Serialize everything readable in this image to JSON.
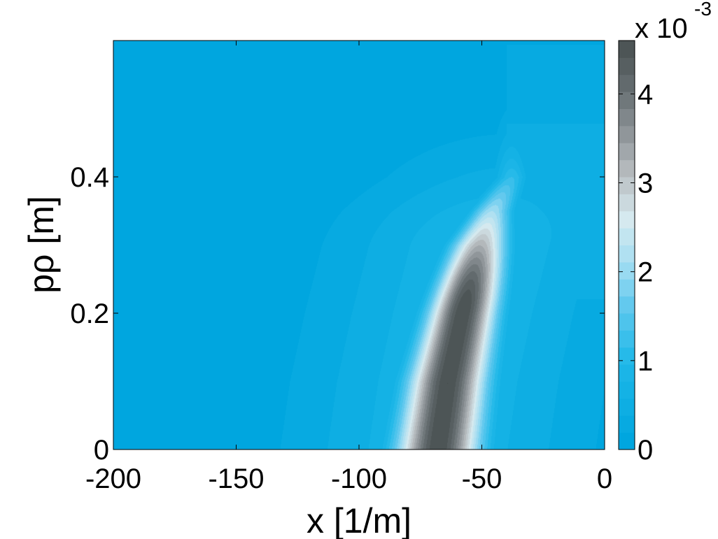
{
  "chart_data": {
    "type": "heatmap",
    "subtype": "filled-contour",
    "title": "",
    "xlabel": "x [1/m]",
    "ylabel": "pρ [m]",
    "xlim": [
      -200,
      0
    ],
    "ylim": [
      0,
      0.6
    ],
    "xticks": [
      -200,
      -150,
      -100,
      -50,
      0
    ],
    "xtick_labels": [
      "-200",
      "-150",
      "-100",
      "-50",
      "0"
    ],
    "yticks": [
      0,
      0.2,
      0.4
    ],
    "ytick_labels": [
      "0",
      "0.2",
      "0.4"
    ],
    "grid": false,
    "colorbar": {
      "exponent_label": "x 10",
      "exponent": "-3",
      "range": [
        0,
        4.6
      ],
      "ticks": [
        0,
        1,
        2,
        3,
        4
      ],
      "tick_labels": [
        "0",
        "1",
        "2",
        "3",
        "4"
      ],
      "colormap": [
        {
          "value": 0.0,
          "color": "#00a6df"
        },
        {
          "value": 0.9,
          "color": "#20b8e8"
        },
        {
          "value": 1.5,
          "color": "#5ec8ee"
        },
        {
          "value": 2.0,
          "color": "#a5def2"
        },
        {
          "value": 2.5,
          "color": "#d6e9ef"
        },
        {
          "value": 3.0,
          "color": "#b9bec1"
        },
        {
          "value": 3.5,
          "color": "#8b9296"
        },
        {
          "value": 4.0,
          "color": "#636b6e"
        },
        {
          "value": 4.6,
          "color": "#424b4b"
        }
      ]
    },
    "peak": {
      "x": -58,
      "y": 0.18,
      "value": 4.6
    },
    "ridge": [
      {
        "y": 0.0,
        "x": -68,
        "width": 17
      },
      {
        "y": 0.1,
        "x": -64,
        "width": 16
      },
      {
        "y": 0.2,
        "x": -58,
        "width": 14
      },
      {
        "y": 0.3,
        "x": -51,
        "width": 12
      },
      {
        "y": 0.35,
        "x": -46,
        "width": 9
      },
      {
        "y": 0.4,
        "x": -38,
        "width": 7
      }
    ]
  }
}
